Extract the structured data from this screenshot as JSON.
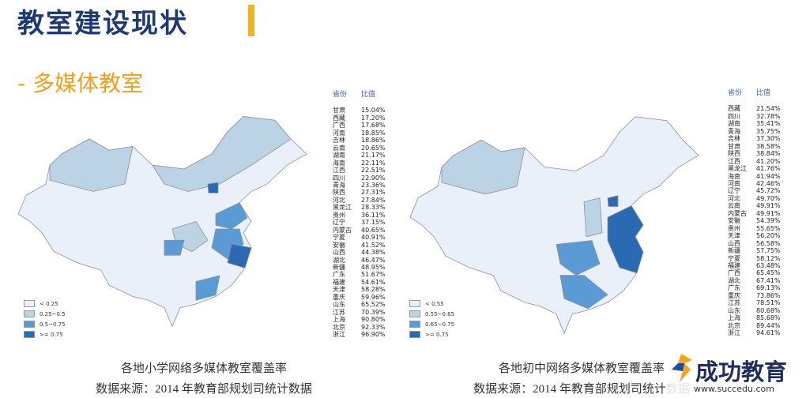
{
  "header": {
    "title": "教室建设现状",
    "subtitle": "- 多媒体教室"
  },
  "panels": [
    {
      "table_header": [
        "省份",
        "比值"
      ],
      "rows": [
        [
          "甘肃",
          "15.04%"
        ],
        [
          "西藏",
          "17.20%"
        ],
        [
          "广西",
          "17.68%"
        ],
        [
          "河南",
          "18.85%"
        ],
        [
          "吉林",
          "18.86%"
        ],
        [
          "云南",
          "20.65%"
        ],
        [
          "湖南",
          "21.17%"
        ],
        [
          "海南",
          "22.11%"
        ],
        [
          "江西",
          "22.51%"
        ],
        [
          "四川",
          "22.90%"
        ],
        [
          "青海",
          "23.36%"
        ],
        [
          "陕西",
          "27.31%"
        ],
        [
          "河北",
          "27.84%"
        ],
        [
          "黑龙江",
          "28.33%"
        ],
        [
          "贵州",
          "36.11%"
        ],
        [
          "辽宁",
          "37.15%"
        ],
        [
          "内蒙古",
          "40.65%"
        ],
        [
          "宁夏",
          "40.91%"
        ],
        [
          "安徽",
          "41.52%"
        ],
        [
          "山西",
          "44.38%"
        ],
        [
          "湖北",
          "46.47%"
        ],
        [
          "新疆",
          "48.95%"
        ],
        [
          "广东",
          "51.67%"
        ],
        [
          "福建",
          "54.61%"
        ],
        [
          "天津",
          "58.28%"
        ],
        [
          "重庆",
          "59.96%"
        ],
        [
          "山东",
          "65.52%"
        ],
        [
          "江苏",
          "70.39%"
        ],
        [
          "上海",
          "90.80%"
        ],
        [
          "北京",
          "92.33%"
        ],
        [
          "浙江",
          "96.90%"
        ]
      ],
      "legend": [
        "< 0.25",
        "0.25~0.5",
        "0.5~0.75",
        ">= 0.75"
      ],
      "caption": "各地小学网络多媒体教室覆盖率",
      "source": "数据来源：2014 年教育部规划司统计数据"
    },
    {
      "table_header": [
        "省份",
        "比值"
      ],
      "rows": [
        [
          "西藏",
          "21.54%"
        ],
        [
          "四川",
          "32.78%"
        ],
        [
          "湖南",
          "35.41%"
        ],
        [
          "青海",
          "35.75%"
        ],
        [
          "吉林",
          "37.30%"
        ],
        [
          "甘肃",
          "38.58%"
        ],
        [
          "陕西",
          "38.84%"
        ],
        [
          "江西",
          "41.20%"
        ],
        [
          "黑龙江",
          "41.76%"
        ],
        [
          "海南",
          "41.94%"
        ],
        [
          "河南",
          "42.46%"
        ],
        [
          "辽宁",
          "45.72%"
        ],
        [
          "河北",
          "49.70%"
        ],
        [
          "云南",
          "49.91%"
        ],
        [
          "内蒙古",
          "49.91%"
        ],
        [
          "安徽",
          "54.39%"
        ],
        [
          "贵州",
          "55.65%"
        ],
        [
          "天津",
          "56.20%"
        ],
        [
          "山西",
          "56.58%"
        ],
        [
          "新疆",
          "57.75%"
        ],
        [
          "宁夏",
          "58.12%"
        ],
        [
          "福建",
          "63.48%"
        ],
        [
          "广西",
          "65.45%"
        ],
        [
          "湖北",
          "67.41%"
        ],
        [
          "广东",
          "69.13%"
        ],
        [
          "重庆",
          "73.86%"
        ],
        [
          "江苏",
          "78.51%"
        ],
        [
          "山东",
          "80.68%"
        ],
        [
          "上海",
          "85.68%"
        ],
        [
          "北京",
          "89.44%"
        ],
        [
          "浙江",
          "94.61%"
        ]
      ],
      "legend": [
        "< 0.55",
        "0.55~0.65",
        "0.65~0.75",
        ">= 0.75"
      ],
      "caption": "各地初中网络多媒体教室覆盖率",
      "source": "数据来源：2014 年教育部规划司统计数据"
    }
  ],
  "watermark": {
    "name": "成功教育",
    "url": "www.succedu.com"
  }
}
